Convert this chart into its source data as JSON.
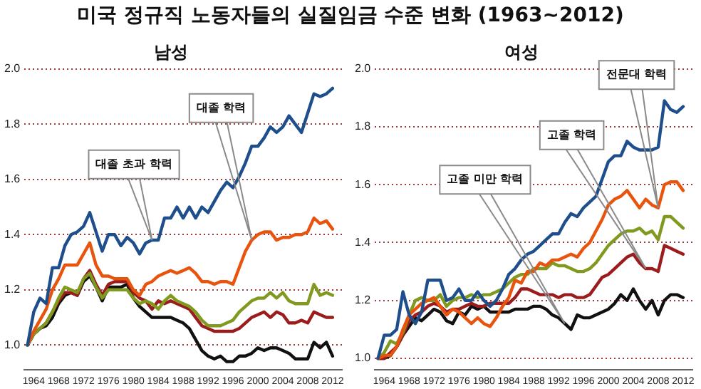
{
  "chart_data": [
    {
      "type": "line",
      "title": "미국 정규직 노동자들의 실질임금 수준 변화 (1963~2012)",
      "subtitle": "남성",
      "x": [
        1963,
        1964,
        1965,
        1966,
        1967,
        1968,
        1969,
        1970,
        1971,
        1972,
        1973,
        1974,
        1975,
        1976,
        1977,
        1978,
        1979,
        1980,
        1981,
        1982,
        1983,
        1984,
        1985,
        1986,
        1987,
        1988,
        1989,
        1990,
        1991,
        1992,
        1993,
        1994,
        1995,
        1996,
        1997,
        1998,
        1999,
        2000,
        2001,
        2002,
        2003,
        2004,
        2005,
        2006,
        2007,
        2008,
        2009,
        2010,
        2011,
        2012
      ],
      "xlim": [
        1962.5,
        2013.5
      ],
      "xticks": [
        1964,
        1968,
        1972,
        1976,
        1980,
        1984,
        1988,
        1992,
        1996,
        2000,
        2004,
        2008,
        2012
      ],
      "ylim": [
        0.91,
        2.0
      ],
      "yticks": [
        {
          "value": 1,
          "label": "1.0"
        },
        {
          "value": 1.2,
          "label": "1.2"
        },
        {
          "value": 1.4,
          "label": "1.4"
        },
        {
          "value": 1.6,
          "label": "1.6"
        },
        {
          "value": 1.8,
          "label": "1.8"
        },
        {
          "value": 2,
          "label": "2.0"
        }
      ],
      "grid": "y",
      "legend": false,
      "line_style": "solid",
      "series": [
        {
          "color": "#1f4e8c",
          "values": [
            1.0,
            1.12,
            1.17,
            1.15,
            1.28,
            1.28,
            1.36,
            1.4,
            1.41,
            1.43,
            1.48,
            1.41,
            1.34,
            1.4,
            1.4,
            1.36,
            1.39,
            1.37,
            1.33,
            1.37,
            1.38,
            1.38,
            1.46,
            1.46,
            1.5,
            1.46,
            1.5,
            1.46,
            1.5,
            1.48,
            1.52,
            1.56,
            1.59,
            1.57,
            1.61,
            1.66,
            1.72,
            1.72,
            1.75,
            1.79,
            1.77,
            1.79,
            1.83,
            1.8,
            1.77,
            1.84,
            1.91,
            1.9,
            1.91,
            1.93
          ]
        },
        {
          "color": "#e8530e",
          "values": [
            1.0,
            1.05,
            1.09,
            1.13,
            1.2,
            1.24,
            1.29,
            1.29,
            1.29,
            1.33,
            1.37,
            1.29,
            1.25,
            1.25,
            1.24,
            1.24,
            1.24,
            1.2,
            1.18,
            1.22,
            1.23,
            1.25,
            1.26,
            1.27,
            1.26,
            1.27,
            1.28,
            1.26,
            1.23,
            1.23,
            1.22,
            1.23,
            1.23,
            1.22,
            1.28,
            1.34,
            1.38,
            1.4,
            1.41,
            1.41,
            1.38,
            1.39,
            1.39,
            1.4,
            1.4,
            1.41,
            1.46,
            1.44,
            1.45,
            1.42
          ]
        },
        {
          "color": "#7f9a1e",
          "values": [
            1.0,
            1.04,
            1.06,
            1.08,
            1.12,
            1.17,
            1.21,
            1.2,
            1.19,
            1.24,
            1.26,
            1.21,
            1.17,
            1.2,
            1.2,
            1.2,
            1.2,
            1.17,
            1.15,
            1.16,
            1.15,
            1.13,
            1.16,
            1.18,
            1.16,
            1.15,
            1.14,
            1.12,
            1.09,
            1.07,
            1.07,
            1.07,
            1.08,
            1.09,
            1.12,
            1.14,
            1.16,
            1.17,
            1.17,
            1.19,
            1.17,
            1.19,
            1.16,
            1.15,
            1.15,
            1.15,
            1.22,
            1.18,
            1.19,
            1.18
          ]
        },
        {
          "color": "#9b1c1c",
          "values": [
            1.0,
            1.04,
            1.06,
            1.08,
            1.12,
            1.16,
            1.19,
            1.19,
            1.18,
            1.24,
            1.27,
            1.22,
            1.18,
            1.22,
            1.23,
            1.23,
            1.23,
            1.19,
            1.17,
            1.16,
            1.13,
            1.16,
            1.15,
            1.16,
            1.15,
            1.14,
            1.13,
            1.1,
            1.07,
            1.06,
            1.05,
            1.05,
            1.05,
            1.05,
            1.06,
            1.08,
            1.1,
            1.11,
            1.12,
            1.1,
            1.12,
            1.11,
            1.08,
            1.08,
            1.09,
            1.08,
            1.12,
            1.11,
            1.1,
            1.1
          ]
        },
        {
          "color": "#111111",
          "values": [
            1.0,
            1.04,
            1.06,
            1.07,
            1.1,
            1.15,
            1.18,
            1.19,
            1.18,
            1.23,
            1.25,
            1.21,
            1.16,
            1.21,
            1.21,
            1.21,
            1.22,
            1.17,
            1.14,
            1.12,
            1.1,
            1.1,
            1.1,
            1.1,
            1.09,
            1.08,
            1.06,
            1.02,
            0.98,
            0.96,
            0.95,
            0.96,
            0.94,
            0.94,
            0.96,
            0.96,
            0.97,
            0.99,
            0.98,
            0.99,
            0.99,
            0.98,
            0.97,
            0.95,
            0.95,
            0.95,
            1.01,
            0.99,
            1.01,
            0.96
          ]
        }
      ],
      "annotations": [
        "대졸 초과 학력",
        "대졸 학력"
      ]
    },
    {
      "type": "line",
      "title": "여성",
      "x": [
        1963,
        1964,
        1965,
        1966,
        1967,
        1968,
        1969,
        1970,
        1971,
        1972,
        1973,
        1974,
        1975,
        1976,
        1977,
        1978,
        1979,
        1980,
        1981,
        1982,
        1983,
        1984,
        1985,
        1986,
        1987,
        1988,
        1989,
        1990,
        1991,
        1992,
        1993,
        1994,
        1995,
        1996,
        1997,
        1998,
        1999,
        2000,
        2001,
        2002,
        2003,
        2004,
        2005,
        2006,
        2007,
        2008,
        2009,
        2010,
        2011,
        2012
      ],
      "xlim": [
        1962.5,
        2013.5
      ],
      "xticks": [
        1964,
        1968,
        1972,
        1976,
        1980,
        1984,
        1988,
        1992,
        1996,
        2000,
        2004,
        2008,
        2012
      ],
      "ylim": [
        0.96,
        2.0
      ],
      "yticks": [
        {
          "value": 1,
          "label": "1.0"
        },
        {
          "value": 1.2,
          "label": "1.2"
        },
        {
          "value": 1.4,
          "label": "1.4"
        },
        {
          "value": 1.6,
          "label": "1.6"
        },
        {
          "value": 1.8,
          "label": "1.8"
        },
        {
          "value": 2,
          "label": "2.0"
        }
      ],
      "grid": "y",
      "legend": false,
      "line_style": "solid",
      "series": [
        {
          "color": "#1f4e8c",
          "values": [
            1.0,
            1.08,
            1.08,
            1.1,
            1.23,
            1.15,
            1.12,
            1.16,
            1.27,
            1.27,
            1.27,
            1.2,
            1.21,
            1.24,
            1.2,
            1.2,
            1.23,
            1.2,
            1.18,
            1.2,
            1.24,
            1.29,
            1.31,
            1.34,
            1.36,
            1.37,
            1.39,
            1.41,
            1.43,
            1.43,
            1.47,
            1.5,
            1.49,
            1.52,
            1.54,
            1.56,
            1.62,
            1.68,
            1.7,
            1.7,
            1.75,
            1.73,
            1.72,
            1.72,
            1.72,
            1.73,
            1.89,
            1.86,
            1.85,
            1.87
          ]
        },
        {
          "color": "#e8530e",
          "values": [
            1.0,
            1.01,
            1.01,
            1.04,
            1.1,
            1.15,
            1.17,
            1.19,
            1.2,
            1.21,
            1.18,
            1.15,
            1.17,
            1.16,
            1.14,
            1.12,
            1.14,
            1.12,
            1.11,
            1.14,
            1.18,
            1.21,
            1.27,
            1.26,
            1.3,
            1.3,
            1.33,
            1.32,
            1.34,
            1.34,
            1.35,
            1.36,
            1.35,
            1.38,
            1.4,
            1.44,
            1.48,
            1.53,
            1.55,
            1.56,
            1.58,
            1.55,
            1.52,
            1.55,
            1.53,
            1.52,
            1.6,
            1.61,
            1.61,
            1.58
          ]
        },
        {
          "color": "#7f9a1e",
          "values": [
            1.0,
            1.02,
            1.06,
            1.05,
            1.09,
            1.15,
            1.2,
            1.21,
            1.2,
            1.2,
            1.22,
            1.18,
            1.2,
            1.21,
            1.21,
            1.22,
            1.21,
            1.22,
            1.22,
            1.23,
            1.24,
            1.26,
            1.28,
            1.29,
            1.29,
            1.31,
            1.31,
            1.31,
            1.33,
            1.32,
            1.32,
            1.31,
            1.3,
            1.3,
            1.31,
            1.33,
            1.36,
            1.39,
            1.41,
            1.43,
            1.44,
            1.44,
            1.45,
            1.43,
            1.44,
            1.41,
            1.49,
            1.49,
            1.47,
            1.45
          ]
        },
        {
          "color": "#9b1c1c",
          "values": [
            1.0,
            1.0,
            1.02,
            1.04,
            1.08,
            1.13,
            1.15,
            1.16,
            1.18,
            1.19,
            1.18,
            1.16,
            1.17,
            1.17,
            1.18,
            1.19,
            1.18,
            1.18,
            1.19,
            1.19,
            1.19,
            1.19,
            1.21,
            1.24,
            1.24,
            1.23,
            1.22,
            1.22,
            1.22,
            1.21,
            1.22,
            1.22,
            1.21,
            1.21,
            1.22,
            1.25,
            1.28,
            1.29,
            1.31,
            1.33,
            1.35,
            1.36,
            1.33,
            1.31,
            1.31,
            1.3,
            1.39,
            1.38,
            1.37,
            1.36
          ]
        },
        {
          "color": "#111111",
          "values": [
            1.0,
            1.0,
            1.01,
            1.04,
            1.08,
            1.11,
            1.14,
            1.13,
            1.15,
            1.17,
            1.16,
            1.13,
            1.12,
            1.16,
            1.15,
            1.18,
            1.17,
            1.18,
            1.16,
            1.16,
            1.16,
            1.16,
            1.17,
            1.17,
            1.17,
            1.18,
            1.18,
            1.17,
            1.15,
            1.14,
            1.12,
            1.1,
            1.15,
            1.14,
            1.14,
            1.15,
            1.16,
            1.17,
            1.19,
            1.22,
            1.2,
            1.24,
            1.2,
            1.17,
            1.2,
            1.15,
            1.2,
            1.22,
            1.22,
            1.21
          ]
        }
      ],
      "annotations": [
        "고졸 미만 학력",
        "고졸 학력",
        "전문대 학력"
      ]
    }
  ]
}
